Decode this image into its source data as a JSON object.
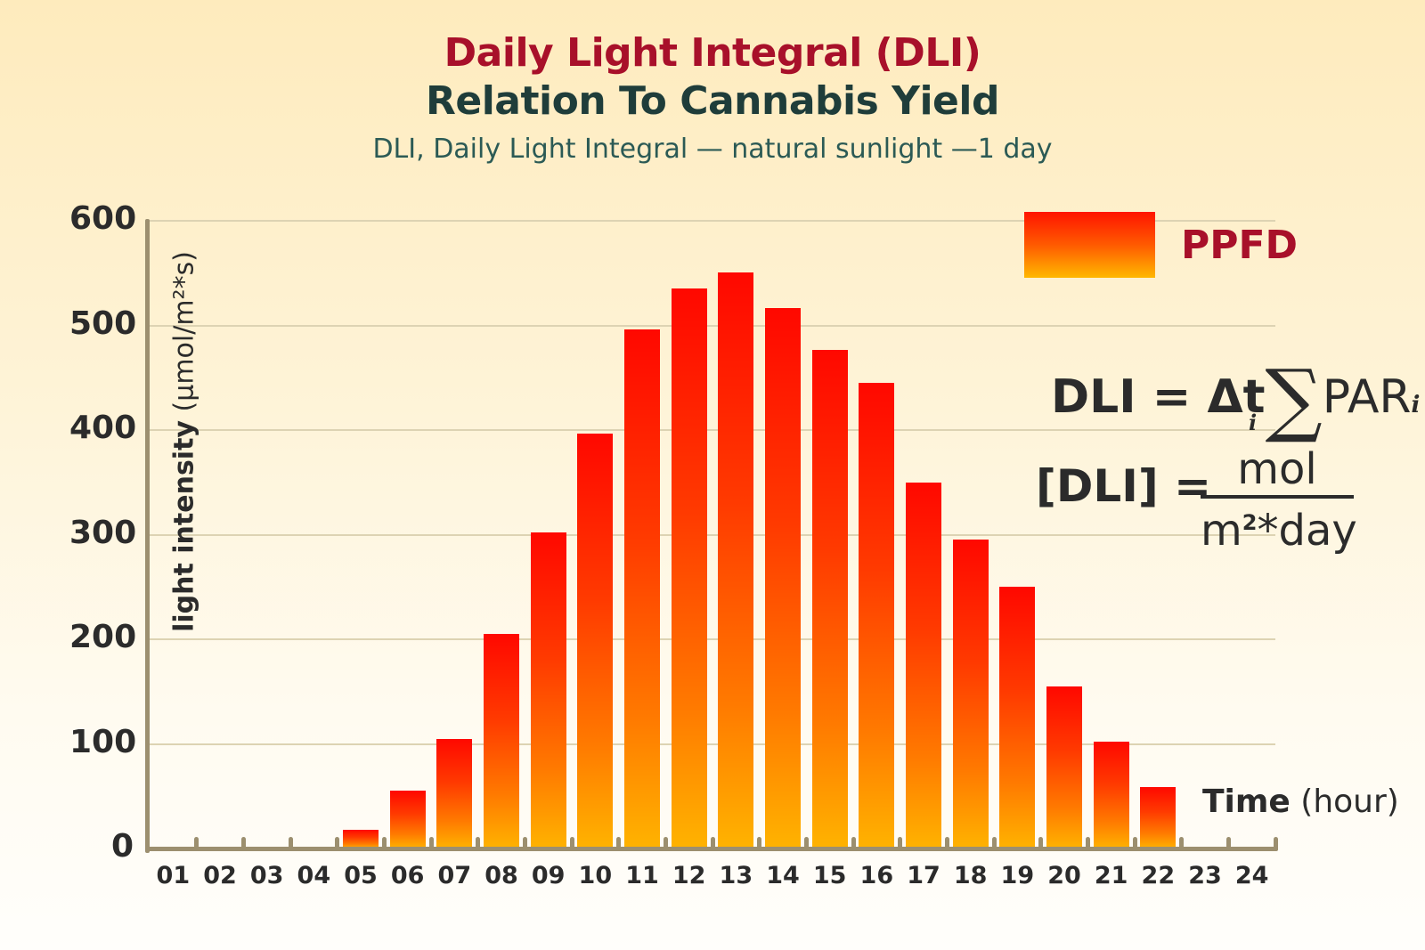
{
  "header": {
    "title": "Daily Light Integral (DLI)",
    "subtitle": "Relation To Cannabis Yield",
    "caption": "DLI, Daily Light Integral — natural sunlight —1 day"
  },
  "axes": {
    "y_label_bold": "light intensity",
    "y_label_unit": "(μmol/m²*s)",
    "x_label_bold": "Time",
    "x_label_unit": "(hour)"
  },
  "legend": {
    "label": "PPFD",
    "swatch": "gradient-red-to-yellow"
  },
  "formulas": {
    "dli_lhs": "DLI = ",
    "dli_delta": "Δt",
    "dli_sigma": "∑",
    "dli_sigma_sub": "i",
    "dli_par": "PAR",
    "dli_par_sub": "i",
    "unit_lhs": "[DLI] = ",
    "unit_numerator": "mol",
    "unit_denominator_m": "m",
    "unit_denominator_sup": "2",
    "unit_denominator_rest": "*day"
  },
  "colors": {
    "title": "#a8102a",
    "subtitle": "#1f3d3a",
    "bar_top": "#ff0800",
    "bar_bottom": "#ffb300",
    "axis": "#9c8f6f",
    "gridline": "#ddd3b3"
  },
  "chart_data": {
    "type": "bar",
    "title": "Daily Light Integral (DLI) — Relation To Cannabis Yield",
    "subtitle": "DLI, Daily Light Integral — natural sunlight —1 day",
    "xlabel": "Time (hour)",
    "ylabel": "light intensity (μmol/m²*s)",
    "ylim": [
      0,
      600
    ],
    "yticks": [
      0,
      100,
      200,
      300,
      400,
      500,
      600
    ],
    "grid": true,
    "legend_position": "top-right",
    "categories": [
      "01",
      "02",
      "03",
      "04",
      "05",
      "06",
      "07",
      "08",
      "09",
      "10",
      "11",
      "12",
      "13",
      "14",
      "15",
      "16",
      "17",
      "18",
      "19",
      "20",
      "21",
      "22",
      "23",
      "24"
    ],
    "series": [
      {
        "name": "PPFD",
        "values": [
          0,
          0,
          0,
          0,
          18,
          55,
          105,
          205,
          302,
          397,
          496,
          535,
          551,
          517,
          477,
          445,
          350,
          295,
          250,
          155,
          102,
          59,
          0,
          0
        ]
      }
    ],
    "annotations": [
      "DLI = Δt ∑_i PAR_i",
      "[DLI] = mol / (m² * day)"
    ]
  }
}
